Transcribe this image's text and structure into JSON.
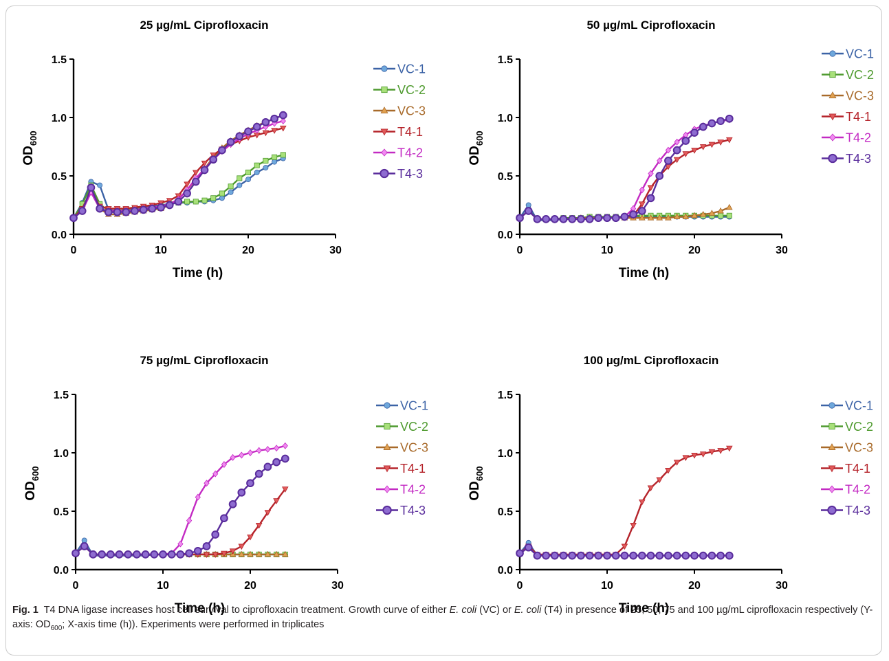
{
  "colors": {
    "VC-1": "#3c63a6",
    "VC-2": "#4e9a2e",
    "VC-3": "#a86a2a",
    "T4-1": "#b5232a",
    "T4-2": "#c32ac3",
    "T4-3": "#5a2d9c"
  },
  "marker_colors": {
    "VC-1": "#6fa8dc",
    "VC-2": "#a8e07a",
    "VC-3": "#e0a050",
    "T4-1": "#e05a5a",
    "T4-2": "#f08af0",
    "T4-3": "#8e6cd0"
  },
  "markers": {
    "VC-1": "circle",
    "VC-2": "square",
    "VC-3": "triangle-up",
    "T4-1": "triangle-down",
    "T4-2": "diamond",
    "T4-3": "big-circle"
  },
  "chart_data": [
    {
      "type": "line",
      "title": "25 µg/mL Ciprofloxacin",
      "xlabel": "Time (h)",
      "ylabel": "OD600",
      "xlim": [
        0,
        30
      ],
      "ylim": [
        0,
        1.5
      ],
      "xticks": [
        "0",
        "10",
        "20",
        "30"
      ],
      "yticks": [
        "0.0",
        "0.5",
        "1.0",
        "1.5"
      ],
      "x": [
        0,
        1,
        2,
        3,
        4,
        5,
        6,
        7,
        8,
        9,
        10,
        11,
        12,
        13,
        14,
        15,
        16,
        17,
        18,
        19,
        20,
        21,
        22,
        23,
        24
      ],
      "series": [
        {
          "name": "VC-1",
          "values": [
            0.14,
            0.27,
            0.45,
            0.42,
            0.21,
            0.2,
            0.21,
            0.22,
            0.23,
            0.24,
            0.25,
            0.26,
            0.27,
            0.27,
            0.28,
            0.28,
            0.29,
            0.31,
            0.36,
            0.42,
            0.47,
            0.53,
            0.57,
            0.62,
            0.65
          ]
        },
        {
          "name": "VC-2",
          "values": [
            0.14,
            0.26,
            0.42,
            0.26,
            0.2,
            0.2,
            0.21,
            0.22,
            0.22,
            0.23,
            0.24,
            0.26,
            0.27,
            0.28,
            0.28,
            0.29,
            0.31,
            0.35,
            0.41,
            0.48,
            0.53,
            0.59,
            0.63,
            0.66,
            0.68
          ]
        },
        {
          "name": "VC-3",
          "values": [
            0.14,
            0.2,
            0.4,
            0.22,
            0.17,
            0.17,
            0.18,
            0.19,
            0.2,
            0.21,
            0.22,
            0.25,
            0.3,
            0.38,
            0.47,
            0.56,
            0.66,
            0.74,
            0.8,
            0.85,
            0.89,
            0.93,
            0.96,
            0.99,
            1.02
          ]
        },
        {
          "name": "T4-1",
          "values": [
            0.14,
            0.22,
            0.38,
            0.24,
            0.22,
            0.22,
            0.22,
            0.23,
            0.24,
            0.25,
            0.27,
            0.29,
            0.33,
            0.43,
            0.53,
            0.61,
            0.68,
            0.73,
            0.77,
            0.8,
            0.83,
            0.85,
            0.87,
            0.89,
            0.91
          ]
        },
        {
          "name": "T4-2",
          "values": [
            0.14,
            0.2,
            0.36,
            0.22,
            0.2,
            0.2,
            0.2,
            0.21,
            0.22,
            0.23,
            0.24,
            0.26,
            0.3,
            0.38,
            0.48,
            0.56,
            0.64,
            0.71,
            0.77,
            0.82,
            0.86,
            0.89,
            0.92,
            0.95,
            0.97
          ]
        },
        {
          "name": "T4-3",
          "values": [
            0.14,
            0.2,
            0.4,
            0.22,
            0.19,
            0.19,
            0.19,
            0.2,
            0.21,
            0.22,
            0.23,
            0.25,
            0.28,
            0.35,
            0.45,
            0.55,
            0.64,
            0.72,
            0.79,
            0.84,
            0.88,
            0.92,
            0.96,
            0.99,
            1.02
          ]
        }
      ]
    },
    {
      "type": "line",
      "title": "50 µg/mL Ciprofloxacin",
      "xlabel": "Time (h)",
      "ylabel": "OD600",
      "xlim": [
        0,
        30
      ],
      "ylim": [
        0,
        1.5
      ],
      "xticks": [
        "0",
        "10",
        "20",
        "30"
      ],
      "yticks": [
        "0.0",
        "0.5",
        "1.0",
        "1.5"
      ],
      "x": [
        0,
        1,
        2,
        3,
        4,
        5,
        6,
        7,
        8,
        9,
        10,
        11,
        12,
        13,
        14,
        15,
        16,
        17,
        18,
        19,
        20,
        21,
        22,
        23,
        24
      ],
      "series": [
        {
          "name": "VC-1",
          "values": [
            0.14,
            0.25,
            0.12,
            0.12,
            0.12,
            0.13,
            0.13,
            0.13,
            0.14,
            0.14,
            0.14,
            0.14,
            0.14,
            0.15,
            0.15,
            0.15,
            0.15,
            0.15,
            0.15,
            0.15,
            0.15,
            0.15,
            0.15,
            0.15,
            0.15
          ]
        },
        {
          "name": "VC-2",
          "values": [
            0.14,
            0.2,
            0.13,
            0.13,
            0.13,
            0.14,
            0.14,
            0.14,
            0.15,
            0.15,
            0.15,
            0.15,
            0.15,
            0.16,
            0.16,
            0.16,
            0.16,
            0.16,
            0.16,
            0.16,
            0.16,
            0.16,
            0.16,
            0.16,
            0.16
          ]
        },
        {
          "name": "VC-3",
          "values": [
            0.14,
            0.2,
            0.13,
            0.13,
            0.13,
            0.13,
            0.13,
            0.14,
            0.14,
            0.14,
            0.14,
            0.14,
            0.14,
            0.14,
            0.14,
            0.14,
            0.14,
            0.14,
            0.15,
            0.15,
            0.16,
            0.17,
            0.18,
            0.2,
            0.23
          ]
        },
        {
          "name": "T4-1",
          "values": [
            0.14,
            0.2,
            0.13,
            0.13,
            0.13,
            0.13,
            0.13,
            0.13,
            0.13,
            0.14,
            0.14,
            0.14,
            0.15,
            0.16,
            0.26,
            0.4,
            0.5,
            0.58,
            0.64,
            0.69,
            0.72,
            0.75,
            0.77,
            0.79,
            0.81
          ]
        },
        {
          "name": "T4-2",
          "values": [
            0.14,
            0.2,
            0.13,
            0.13,
            0.13,
            0.13,
            0.13,
            0.13,
            0.13,
            0.14,
            0.14,
            0.14,
            0.15,
            0.22,
            0.38,
            0.52,
            0.63,
            0.72,
            0.79,
            0.85,
            0.9,
            0.93,
            0.95,
            0.97,
            0.98
          ]
        },
        {
          "name": "T4-3",
          "values": [
            0.14,
            0.2,
            0.13,
            0.13,
            0.13,
            0.13,
            0.13,
            0.13,
            0.13,
            0.14,
            0.14,
            0.14,
            0.15,
            0.17,
            0.2,
            0.31,
            0.5,
            0.63,
            0.72,
            0.8,
            0.87,
            0.92,
            0.95,
            0.97,
            0.99
          ]
        }
      ]
    },
    {
      "type": "line",
      "title": "75 µg/mL Ciprofloxacin",
      "xlabel": "Time (h)",
      "ylabel": "OD600",
      "xlim": [
        0,
        30
      ],
      "ylim": [
        0,
        1.5
      ],
      "xticks": [
        "0",
        "10",
        "20",
        "30"
      ],
      "yticks": [
        "0.0",
        "0.5",
        "1.0",
        "1.5"
      ],
      "x": [
        0,
        1,
        2,
        3,
        4,
        5,
        6,
        7,
        8,
        9,
        10,
        11,
        12,
        13,
        14,
        15,
        16,
        17,
        18,
        19,
        20,
        21,
        22,
        23,
        24
      ],
      "series": [
        {
          "name": "VC-1",
          "values": [
            0.14,
            0.25,
            0.12,
            0.12,
            0.12,
            0.12,
            0.12,
            0.12,
            0.12,
            0.13,
            0.13,
            0.13,
            0.13,
            0.13,
            0.13,
            0.13,
            0.13,
            0.13,
            0.13,
            0.13,
            0.13,
            0.13,
            0.13,
            0.13,
            0.13
          ]
        },
        {
          "name": "VC-2",
          "values": [
            0.14,
            0.2,
            0.13,
            0.13,
            0.13,
            0.13,
            0.13,
            0.13,
            0.13,
            0.13,
            0.13,
            0.13,
            0.13,
            0.13,
            0.13,
            0.13,
            0.13,
            0.13,
            0.13,
            0.13,
            0.13,
            0.13,
            0.13,
            0.13,
            0.13
          ]
        },
        {
          "name": "VC-3",
          "values": [
            0.14,
            0.2,
            0.13,
            0.13,
            0.13,
            0.13,
            0.13,
            0.13,
            0.13,
            0.13,
            0.13,
            0.13,
            0.13,
            0.13,
            0.13,
            0.13,
            0.13,
            0.13,
            0.13,
            0.13,
            0.13,
            0.13,
            0.13,
            0.13,
            0.13
          ]
        },
        {
          "name": "T4-1",
          "values": [
            0.14,
            0.2,
            0.13,
            0.13,
            0.13,
            0.13,
            0.13,
            0.13,
            0.13,
            0.13,
            0.13,
            0.13,
            0.13,
            0.13,
            0.13,
            0.13,
            0.13,
            0.14,
            0.16,
            0.2,
            0.28,
            0.38,
            0.49,
            0.59,
            0.69
          ]
        },
        {
          "name": "T4-2",
          "values": [
            0.14,
            0.2,
            0.13,
            0.13,
            0.13,
            0.13,
            0.13,
            0.13,
            0.13,
            0.13,
            0.13,
            0.14,
            0.22,
            0.42,
            0.62,
            0.74,
            0.82,
            0.9,
            0.96,
            0.98,
            1.0,
            1.02,
            1.03,
            1.04,
            1.06
          ]
        },
        {
          "name": "T4-3",
          "values": [
            0.14,
            0.2,
            0.13,
            0.13,
            0.13,
            0.13,
            0.13,
            0.13,
            0.13,
            0.13,
            0.13,
            0.13,
            0.13,
            0.14,
            0.16,
            0.2,
            0.3,
            0.44,
            0.56,
            0.66,
            0.74,
            0.82,
            0.88,
            0.92,
            0.95
          ]
        }
      ]
    },
    {
      "type": "line",
      "title": "100 µg/mL Ciprofloxacin",
      "xlabel": "Time (h)",
      "ylabel": "OD600",
      "xlim": [
        0,
        30
      ],
      "ylim": [
        0,
        1.5
      ],
      "xticks": [
        "0",
        "10",
        "20",
        "30"
      ],
      "yticks": [
        "0.0",
        "0.5",
        "1.0",
        "1.5"
      ],
      "x": [
        0,
        1,
        2,
        3,
        4,
        5,
        6,
        7,
        8,
        9,
        10,
        11,
        12,
        13,
        14,
        15,
        16,
        17,
        18,
        19,
        20,
        21,
        22,
        23,
        24
      ],
      "series": [
        {
          "name": "VC-1",
          "values": [
            0.14,
            0.23,
            0.12,
            0.12,
            0.12,
            0.12,
            0.12,
            0.12,
            0.12,
            0.12,
            0.12,
            0.12,
            0.12,
            0.12,
            0.12,
            0.12,
            0.12,
            0.12,
            0.12,
            0.12,
            0.12,
            0.12,
            0.12,
            0.12,
            0.12
          ]
        },
        {
          "name": "VC-2",
          "values": [
            0.14,
            0.19,
            0.12,
            0.12,
            0.12,
            0.12,
            0.12,
            0.12,
            0.12,
            0.12,
            0.12,
            0.12,
            0.12,
            0.12,
            0.12,
            0.12,
            0.12,
            0.12,
            0.12,
            0.12,
            0.12,
            0.12,
            0.12,
            0.12,
            0.12
          ]
        },
        {
          "name": "VC-3",
          "values": [
            0.14,
            0.19,
            0.12,
            0.12,
            0.12,
            0.12,
            0.12,
            0.12,
            0.12,
            0.12,
            0.12,
            0.12,
            0.12,
            0.12,
            0.12,
            0.12,
            0.12,
            0.12,
            0.12,
            0.12,
            0.12,
            0.12,
            0.12,
            0.12,
            0.12
          ]
        },
        {
          "name": "T4-1",
          "values": [
            0.14,
            0.2,
            0.13,
            0.13,
            0.13,
            0.13,
            0.13,
            0.13,
            0.13,
            0.13,
            0.13,
            0.13,
            0.2,
            0.38,
            0.58,
            0.7,
            0.77,
            0.85,
            0.92,
            0.96,
            0.98,
            0.99,
            1.01,
            1.02,
            1.04
          ]
        },
        {
          "name": "T4-2",
          "values": [
            0.14,
            0.19,
            0.12,
            0.12,
            0.12,
            0.12,
            0.12,
            0.12,
            0.12,
            0.12,
            0.12,
            0.12,
            0.12,
            0.12,
            0.12,
            0.12,
            0.12,
            0.12,
            0.12,
            0.12,
            0.12,
            0.12,
            0.12,
            0.12,
            0.12
          ]
        },
        {
          "name": "T4-3",
          "values": [
            0.14,
            0.19,
            0.12,
            0.12,
            0.12,
            0.12,
            0.12,
            0.12,
            0.12,
            0.12,
            0.12,
            0.12,
            0.12,
            0.12,
            0.12,
            0.12,
            0.12,
            0.12,
            0.12,
            0.12,
            0.12,
            0.12,
            0.12,
            0.12,
            0.12
          ]
        }
      ]
    }
  ],
  "caption": {
    "label": "Fig. 1",
    "t1": "T4 DNA ligase increases host cell survival to ciprofloxacin treatment. Growth curve of either ",
    "ecoli1": "E. coli",
    "t2": " (VC) or ",
    "ecoli2": "E. coli",
    "t3": " (T4) in presence of 25, 50, 75 and 100 µg/mL ciprofloxacin respectively (Y-axis: OD",
    "sub": "600",
    "t4": "; X-axis time (h)). Experiments were performed in triplicates"
  }
}
